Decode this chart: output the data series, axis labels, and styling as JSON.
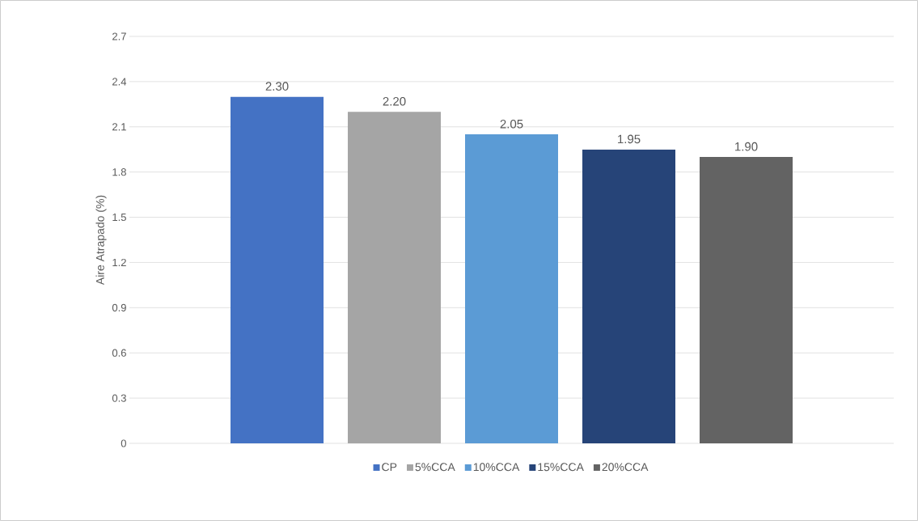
{
  "chart_data": {
    "type": "bar",
    "ylabel": "Aire Atrapado (%)",
    "categories": [
      null
    ],
    "series": [
      {
        "name": "CP",
        "color": "#4472c4",
        "values": [
          2.3
        ],
        "value_labels": [
          "2.30"
        ]
      },
      {
        "name": "5%CCA",
        "color": "#a5a5a5",
        "values": [
          2.2
        ],
        "value_labels": [
          "2.20"
        ]
      },
      {
        "name": "10%CCA",
        "color": "#5b9bd5",
        "values": [
          2.05
        ],
        "value_labels": [
          "2.05"
        ]
      },
      {
        "name": "15%CCA",
        "color": "#264478",
        "values": [
          1.95
        ],
        "value_labels": [
          "1.95"
        ]
      },
      {
        "name": "20%CCA",
        "color": "#636363",
        "values": [
          1.9
        ],
        "value_labels": [
          "1.90"
        ]
      }
    ],
    "ylim": [
      0,
      2.7
    ],
    "yticks": [
      0,
      0.3,
      0.6,
      0.9,
      1.2,
      1.5,
      1.8,
      2.1,
      2.4,
      2.7
    ],
    "grid": "y",
    "legend": "bottom"
  }
}
